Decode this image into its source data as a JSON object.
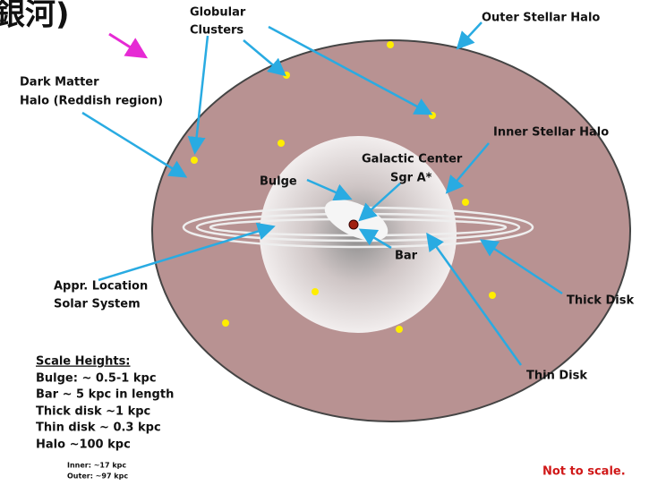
{
  "header": {
    "title": "銀河)"
  },
  "labels": {
    "globular": [
      "Globular",
      "Clusters"
    ],
    "outer_halo": "Outer Stellar Halo",
    "dark_matter": [
      "Dark Matter",
      "Halo (Reddish region)"
    ],
    "inner_halo": "Inner Stellar Halo",
    "galactic_center": [
      "Galactic Center",
      "Sgr A*"
    ],
    "bulge": "Bulge",
    "bar": "Bar",
    "solar_system": [
      "Appr. Location",
      "Solar System"
    ],
    "thick_disk": "Thick Disk",
    "thin_disk": "Thin Disk",
    "not_to_scale": "Not to scale."
  },
  "scale_heights": {
    "heading": "Scale Heights:",
    "lines": [
      "Bulge: ~ 0.5-1 kpc",
      "Bar ~ 5 kpc in length",
      "Thick disk ~1 kpc",
      "Thin disk ~ 0.3 kpc",
      "Halo ~100 kpc"
    ],
    "sub": [
      "Inner: ~17 kpc",
      "Outer: ~97 kpc"
    ]
  }
}
